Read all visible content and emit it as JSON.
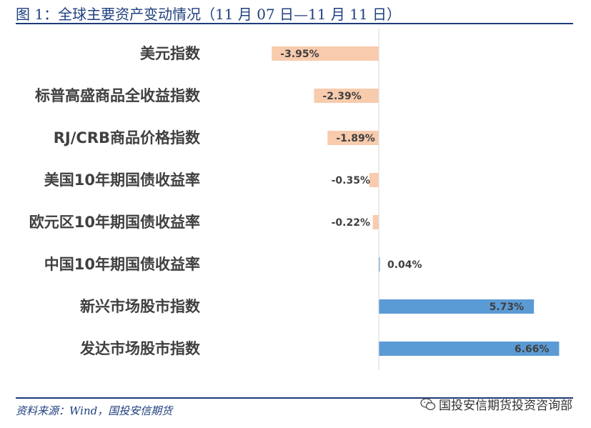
{
  "header": {
    "title": "图 1：全球主要资产变动情况（11 月 07 日—11 月 11 日）"
  },
  "footer": {
    "source": "资料来源：Wind，国投安信期货",
    "watermark": "国投安信期货投资咨询部"
  },
  "colors": {
    "negative": "#f8cbad",
    "positive": "#5b9bd5",
    "title": "#1f3f7f",
    "rule": "#1f3a7a"
  },
  "chart_data": {
    "type": "bar",
    "orientation": "horizontal",
    "categories": [
      "美元指数",
      "标普高盛商品全收益指数",
      "RJ/CRB商品价格指数",
      "美国10年期国债收益率",
      "欧元区10年期国债收益率",
      "中国10年期国债收益率",
      "新兴市场股市指数",
      "发达市场股市指数"
    ],
    "values": [
      -3.95,
      -2.39,
      -1.89,
      -0.35,
      -0.22,
      0.04,
      5.73,
      6.66
    ],
    "value_labels": [
      "-3.95%",
      "-2.39%",
      "-1.89%",
      "-0.35%",
      "-0.22%",
      "0.04%",
      "5.73%",
      "6.66%"
    ],
    "xlim": [
      -5.5,
      7.0
    ],
    "grid": false,
    "legend": "none"
  }
}
